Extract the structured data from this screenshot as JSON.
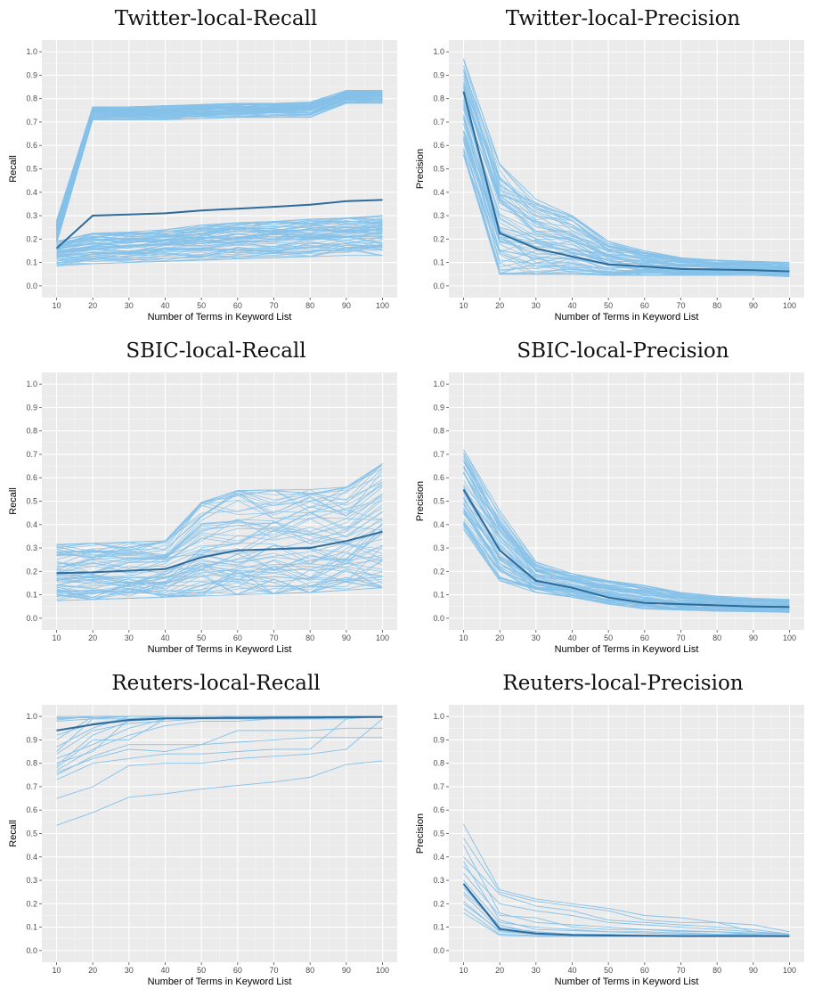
{
  "chart_data": [
    {
      "type": "line",
      "title": "Twitter-local-Recall",
      "xlabel": "Number of Terms in Keyword List",
      "ylabel": "Recall",
      "x": [
        10,
        20,
        30,
        40,
        50,
        60,
        70,
        80,
        90,
        100
      ],
      "xlim": [
        10,
        100
      ],
      "ylim": [
        0,
        1
      ],
      "yticks": [
        "0.0",
        "0.1",
        "0.2",
        "0.3",
        "0.4",
        "0.5",
        "0.6",
        "0.7",
        "0.8",
        "0.9",
        "1.0"
      ],
      "grid": true,
      "legend": "none",
      "mean_color": "#2f6b9a",
      "band_color": "#85c1e9",
      "mean": [
        0.16,
        0.3,
        0.305,
        0.31,
        0.322,
        0.33,
        0.338,
        0.347,
        0.362,
        0.367
      ],
      "band_groups": [
        {
          "lower": [
            0.18,
            0.71,
            0.71,
            0.71,
            0.715,
            0.72,
            0.72,
            0.72,
            0.78,
            0.78
          ],
          "upper": [
            0.28,
            0.765,
            0.765,
            0.77,
            0.775,
            0.78,
            0.78,
            0.785,
            0.835,
            0.835
          ]
        },
        {
          "lower": [
            0.085,
            0.095,
            0.1,
            0.105,
            0.11,
            0.115,
            0.12,
            0.125,
            0.13,
            0.13
          ],
          "upper": [
            0.19,
            0.225,
            0.23,
            0.24,
            0.26,
            0.27,
            0.275,
            0.285,
            0.29,
            0.3
          ]
        }
      ]
    },
    {
      "type": "line",
      "title": "Twitter-local-Precision",
      "xlabel": "Number of Terms in Keyword List",
      "ylabel": "Precision",
      "x": [
        10,
        20,
        30,
        40,
        50,
        60,
        70,
        80,
        90,
        100
      ],
      "xlim": [
        10,
        100
      ],
      "ylim": [
        0,
        1
      ],
      "yticks": [
        "0.0",
        "0.1",
        "0.2",
        "0.3",
        "0.4",
        "0.5",
        "0.6",
        "0.7",
        "0.8",
        "0.9",
        "1.0"
      ],
      "grid": true,
      "legend": "none",
      "mean_color": "#2f6b9a",
      "band_color": "#85c1e9",
      "mean": [
        0.83,
        0.225,
        0.16,
        0.125,
        0.092,
        0.083,
        0.072,
        0.07,
        0.067,
        0.062
      ],
      "band_groups": [
        {
          "lower": [
            0.56,
            0.05,
            0.05,
            0.05,
            0.045,
            0.045,
            0.045,
            0.045,
            0.045,
            0.04
          ],
          "upper": [
            0.97,
            0.52,
            0.37,
            0.3,
            0.19,
            0.15,
            0.12,
            0.11,
            0.105,
            0.1
          ]
        }
      ]
    },
    {
      "type": "line",
      "title": "SBIC-local-Recall",
      "xlabel": "Number of Terms in Keyword List",
      "ylabel": "Recall",
      "x": [
        10,
        20,
        30,
        40,
        50,
        60,
        70,
        80,
        90,
        100
      ],
      "xlim": [
        10,
        100
      ],
      "ylim": [
        0,
        1
      ],
      "yticks": [
        "0.0",
        "0.1",
        "0.2",
        "0.3",
        "0.4",
        "0.5",
        "0.6",
        "0.7",
        "0.8",
        "0.9",
        "1.0"
      ],
      "grid": true,
      "legend": "none",
      "mean_color": "#2f6b9a",
      "band_color": "#85c1e9",
      "mean": [
        0.193,
        0.196,
        0.203,
        0.21,
        0.26,
        0.29,
        0.295,
        0.3,
        0.33,
        0.37
      ],
      "band_groups": [
        {
          "lower": [
            0.075,
            0.08,
            0.085,
            0.09,
            0.095,
            0.1,
            0.105,
            0.11,
            0.12,
            0.13
          ],
          "upper": [
            0.315,
            0.32,
            0.325,
            0.33,
            0.495,
            0.545,
            0.548,
            0.55,
            0.56,
            0.66
          ]
        }
      ]
    },
    {
      "type": "line",
      "title": "SBIC-local-Precision",
      "xlabel": "Number of Terms in Keyword List",
      "ylabel": "Precision",
      "x": [
        10,
        20,
        30,
        40,
        50,
        60,
        70,
        80,
        90,
        100
      ],
      "xlim": [
        10,
        100
      ],
      "ylim": [
        0,
        1
      ],
      "yticks": [
        "0.0",
        "0.1",
        "0.2",
        "0.3",
        "0.4",
        "0.5",
        "0.6",
        "0.7",
        "0.8",
        "0.9",
        "1.0"
      ],
      "grid": true,
      "legend": "none",
      "mean_color": "#2f6b9a",
      "band_color": "#85c1e9",
      "mean": [
        0.55,
        0.29,
        0.16,
        0.13,
        0.088,
        0.065,
        0.06,
        0.055,
        0.05,
        0.048
      ],
      "band_groups": [
        {
          "lower": [
            0.38,
            0.16,
            0.11,
            0.09,
            0.06,
            0.04,
            0.035,
            0.03,
            0.028,
            0.025
          ],
          "upper": [
            0.72,
            0.46,
            0.24,
            0.19,
            0.16,
            0.14,
            0.11,
            0.095,
            0.085,
            0.08
          ]
        }
      ]
    },
    {
      "type": "line",
      "title": "Reuters-local-Recall",
      "xlabel": "Number of Terms in Keyword List",
      "ylabel": "Recall",
      "x": [
        10,
        20,
        30,
        40,
        50,
        60,
        70,
        80,
        90,
        100
      ],
      "xlim": [
        10,
        100
      ],
      "ylim": [
        0,
        1
      ],
      "yticks": [
        "0.0",
        "0.1",
        "0.2",
        "0.3",
        "0.4",
        "0.5",
        "0.6",
        "0.7",
        "0.8",
        "0.9",
        "1.0"
      ],
      "grid": true,
      "legend": "none",
      "mean_color": "#2f6b9a",
      "band_color": "#85c1e9",
      "mean": [
        0.94,
        0.965,
        0.985,
        0.992,
        0.993,
        0.994,
        0.995,
        0.996,
        0.997,
        0.998
      ],
      "series": [
        {
          "values": [
            0.535,
            0.59,
            0.655,
            0.67,
            0.69,
            0.705,
            0.72,
            0.74,
            0.795,
            0.81
          ]
        },
        {
          "values": [
            0.65,
            0.7,
            0.79,
            0.8,
            0.8,
            0.82,
            0.83,
            0.84,
            0.86,
            0.99
          ]
        },
        {
          "values": [
            0.73,
            0.8,
            0.82,
            0.84,
            0.84,
            0.85,
            0.86,
            0.86,
            0.99,
            1.0
          ]
        },
        {
          "values": [
            0.76,
            0.82,
            0.86,
            0.85,
            0.88,
            0.89,
            0.9,
            0.91,
            0.91,
            0.91
          ]
        },
        {
          "values": [
            0.78,
            0.9,
            0.9,
            0.99,
            0.99,
            0.99,
            0.99,
            0.99,
            1.0,
            1.0
          ]
        },
        {
          "values": [
            0.75,
            0.83,
            0.88,
            0.88,
            0.88,
            0.94,
            0.94,
            0.94,
            0.95,
            0.95
          ]
        },
        {
          "values": [
            0.8,
            0.85,
            0.99,
            1.0,
            1.0,
            1.0,
            1.0,
            1.0,
            1.0,
            1.0
          ]
        },
        {
          "values": [
            0.82,
            0.88,
            0.95,
            0.99,
            0.99,
            0.99,
            0.99,
            0.99,
            1.0,
            1.0
          ]
        },
        {
          "values": [
            0.85,
            0.99,
            0.99,
            1.0,
            1.0,
            1.0,
            1.0,
            1.0,
            1.0,
            1.0
          ]
        },
        {
          "values": [
            0.87,
            0.95,
            1.0,
            1.0,
            1.0,
            1.0,
            1.0,
            1.0,
            1.0,
            1.0
          ]
        },
        {
          "values": [
            0.9,
            1.0,
            1.0,
            1.0,
            1.0,
            1.0,
            1.0,
            1.0,
            1.0,
            1.0
          ]
        },
        {
          "values": [
            0.92,
            0.97,
            0.99,
            0.99,
            0.99,
            1.0,
            1.0,
            1.0,
            1.0,
            1.0
          ]
        },
        {
          "values": [
            0.98,
            0.99,
            1.0,
            1.0,
            1.0,
            1.0,
            1.0,
            1.0,
            1.0,
            1.0
          ]
        },
        {
          "values": [
            0.985,
            1.0,
            1.0,
            1.0,
            1.0,
            1.0,
            1.0,
            1.0,
            1.0,
            1.0
          ]
        },
        {
          "values": [
            0.99,
            1.0,
            1.0,
            1.0,
            1.0,
            1.0,
            1.0,
            1.0,
            1.0,
            1.0
          ]
        },
        {
          "values": [
            0.995,
            0.995,
            1.0,
            1.0,
            1.0,
            1.0,
            1.0,
            1.0,
            1.0,
            1.0
          ]
        },
        {
          "values": [
            1.0,
            1.0,
            1.0,
            1.0,
            1.0,
            1.0,
            1.0,
            1.0,
            1.0,
            1.0
          ]
        },
        {
          "values": [
            0.79,
            0.92,
            0.98,
            0.99,
            0.99,
            0.99,
            0.99,
            0.99,
            0.99,
            1.0
          ]
        },
        {
          "values": [
            0.84,
            0.94,
            0.97,
            0.98,
            0.99,
            0.99,
            0.99,
            0.99,
            1.0,
            1.0
          ]
        },
        {
          "values": [
            0.77,
            0.86,
            0.92,
            0.96,
            0.98,
            0.98,
            0.99,
            0.99,
            0.99,
            1.0
          ]
        }
      ]
    },
    {
      "type": "line",
      "title": "Reuters-local-Precision",
      "xlabel": "Number of Terms in Keyword List",
      "ylabel": "Precision",
      "x": [
        10,
        20,
        30,
        40,
        50,
        60,
        70,
        80,
        90,
        100
      ],
      "xlim": [
        10,
        100
      ],
      "ylim": [
        0,
        1
      ],
      "yticks": [
        "0.0",
        "0.1",
        "0.2",
        "0.3",
        "0.4",
        "0.5",
        "0.6",
        "0.7",
        "0.8",
        "0.9",
        "1.0"
      ],
      "grid": true,
      "legend": "none",
      "mean_color": "#2f6b9a",
      "band_color": "#85c1e9",
      "mean": [
        0.285,
        0.092,
        0.073,
        0.066,
        0.064,
        0.063,
        0.062,
        0.062,
        0.062,
        0.061
      ],
      "series": [
        {
          "values": [
            0.54,
            0.26,
            0.22,
            0.2,
            0.18,
            0.15,
            0.14,
            0.12,
            0.11,
            0.08
          ]
        },
        {
          "values": [
            0.48,
            0.25,
            0.21,
            0.19,
            0.17,
            0.13,
            0.12,
            0.12,
            0.08,
            0.07
          ]
        },
        {
          "values": [
            0.4,
            0.24,
            0.19,
            0.17,
            0.13,
            0.12,
            0.11,
            0.1,
            0.09,
            0.07
          ]
        },
        {
          "values": [
            0.36,
            0.2,
            0.17,
            0.15,
            0.12,
            0.11,
            0.1,
            0.09,
            0.08,
            0.07
          ]
        },
        {
          "values": [
            0.33,
            0.15,
            0.14,
            0.1,
            0.09,
            0.09,
            0.08,
            0.08,
            0.07,
            0.065
          ]
        },
        {
          "values": [
            0.3,
            0.12,
            0.1,
            0.09,
            0.08,
            0.08,
            0.075,
            0.07,
            0.07,
            0.065
          ]
        },
        {
          "values": [
            0.27,
            0.1,
            0.08,
            0.07,
            0.07,
            0.065,
            0.065,
            0.065,
            0.06,
            0.06
          ]
        },
        {
          "values": [
            0.24,
            0.09,
            0.07,
            0.065,
            0.065,
            0.06,
            0.06,
            0.06,
            0.06,
            0.06
          ]
        },
        {
          "values": [
            0.21,
            0.08,
            0.07,
            0.065,
            0.06,
            0.06,
            0.06,
            0.06,
            0.06,
            0.06
          ]
        },
        {
          "values": [
            0.18,
            0.07,
            0.065,
            0.06,
            0.06,
            0.06,
            0.06,
            0.06,
            0.06,
            0.06
          ]
        },
        {
          "values": [
            0.16,
            0.065,
            0.06,
            0.06,
            0.06,
            0.06,
            0.06,
            0.06,
            0.06,
            0.06
          ]
        },
        {
          "values": [
            0.25,
            0.11,
            0.075,
            0.07,
            0.065,
            0.065,
            0.063,
            0.062,
            0.062,
            0.061
          ]
        },
        {
          "values": [
            0.29,
            0.1,
            0.08,
            0.07,
            0.068,
            0.066,
            0.064,
            0.063,
            0.062,
            0.061
          ]
        },
        {
          "values": [
            0.2,
            0.085,
            0.07,
            0.066,
            0.064,
            0.062,
            0.062,
            0.061,
            0.061,
            0.06
          ]
        },
        {
          "values": [
            0.45,
            0.16,
            0.12,
            0.11,
            0.1,
            0.09,
            0.085,
            0.08,
            0.075,
            0.07
          ]
        },
        {
          "values": [
            0.38,
            0.13,
            0.09,
            0.085,
            0.08,
            0.075,
            0.07,
            0.068,
            0.066,
            0.064
          ]
        }
      ]
    }
  ]
}
